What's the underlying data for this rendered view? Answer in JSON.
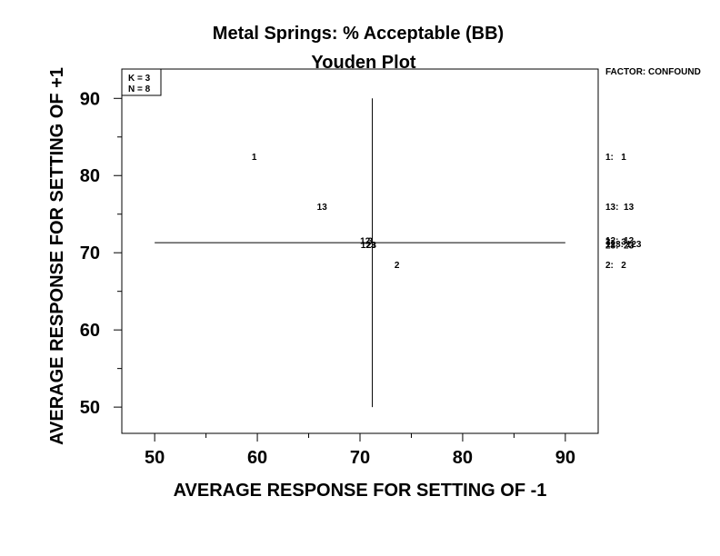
{
  "chart_data": {
    "type": "scatter",
    "title": "Metal Springs: % Acceptable (BB)",
    "subtitle": "Youden Plot",
    "xlabel": "AVERAGE RESPONSE FOR SETTING OF -1",
    "ylabel": "AVERAGE RESPONSE FOR SETTING OF +1",
    "xlim": [
      46.8,
      93.2
    ],
    "ylim": [
      46.6,
      93.8
    ],
    "xticks": [
      50,
      60,
      70,
      80,
      90
    ],
    "yticks": [
      50,
      60,
      70,
      80,
      90
    ],
    "xtick_labels": [
      "50",
      "60",
      "70",
      "80",
      "90"
    ],
    "ytick_labels": [
      "50",
      "60",
      "70",
      "80",
      "90"
    ],
    "x_minor_ticks": [
      55,
      65,
      75,
      85
    ],
    "y_minor_ticks": [
      55,
      65,
      75,
      85
    ],
    "grid": false,
    "inset_box": [
      "K = 3",
      "N = 8"
    ],
    "reference_lines": {
      "horizontal": {
        "y": 71.3,
        "x_from": 50,
        "x_to": 90
      },
      "vertical": {
        "x": 71.2,
        "y_from": 50,
        "y_to": 90
      }
    },
    "points": [
      {
        "label": "1",
        "x": 59.7,
        "y": 82.5
      },
      {
        "label": "13",
        "x": 66.3,
        "y": 76.0
      },
      {
        "label": "12",
        "x": 70.5,
        "y": 71.6
      },
      {
        "label": "3",
        "x": 71.0,
        "y": 71.6
      },
      {
        "label": "123",
        "x": 70.8,
        "y": 71.1
      },
      {
        "label": "23",
        "x": 71.1,
        "y": 71.1
      },
      {
        "label": "2",
        "x": 73.6,
        "y": 68.5
      }
    ],
    "legend": {
      "position": "right",
      "header": "FACTOR: CONFOUND",
      "entries": [
        {
          "text": "1:   1",
          "y": 82.5
        },
        {
          "text": "13:  13",
          "y": 76.0
        },
        {
          "text": "12:  12",
          "y": 71.7
        },
        {
          "text": "3:   3",
          "y": 71.5
        },
        {
          "text": "123: 123",
          "y": 71.2
        },
        {
          "text": "23:  23",
          "y": 71.0
        },
        {
          "text": "2:   2",
          "y": 68.5
        }
      ]
    }
  }
}
